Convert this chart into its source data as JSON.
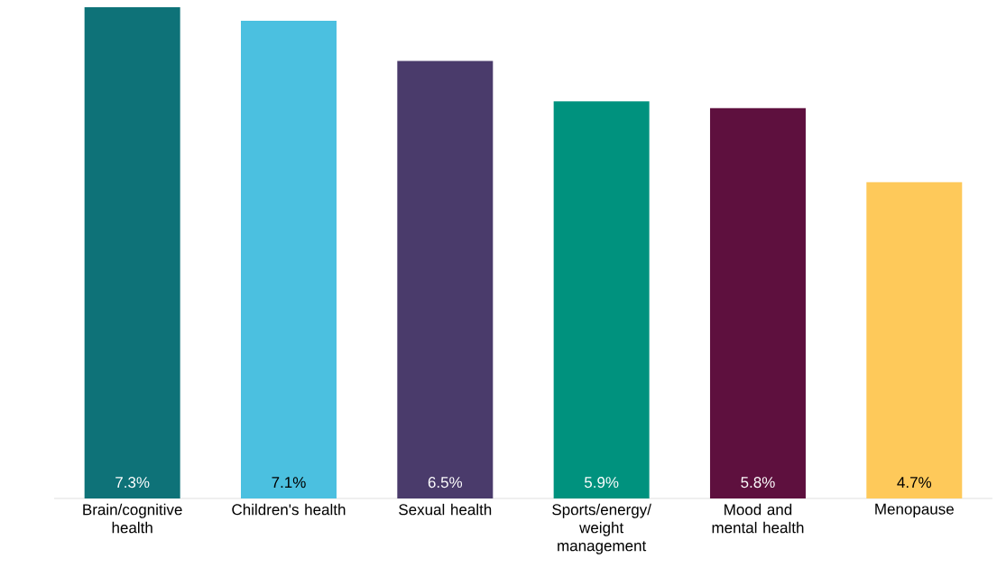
{
  "chart_data": {
    "type": "bar",
    "categories": [
      "Brain/cognitive health",
      "Children's health",
      "Sexual health",
      "Sports/energy/ weight management",
      "Mood and mental health",
      "Menopause"
    ],
    "values": [
      7.3,
      7.1,
      6.5,
      5.9,
      5.8,
      4.7
    ],
    "colors": [
      "#0e7278",
      "#4bc0e0",
      "#4a3b6b",
      "#00927e",
      "#5e103e",
      "#fec95a"
    ],
    "value_labels": [
      "7.3%",
      "7.1%",
      "6.5%",
      "5.9%",
      "5.8%",
      "4.7%"
    ],
    "ylim": [
      0,
      7.3
    ],
    "tick_labels": "x"
  }
}
